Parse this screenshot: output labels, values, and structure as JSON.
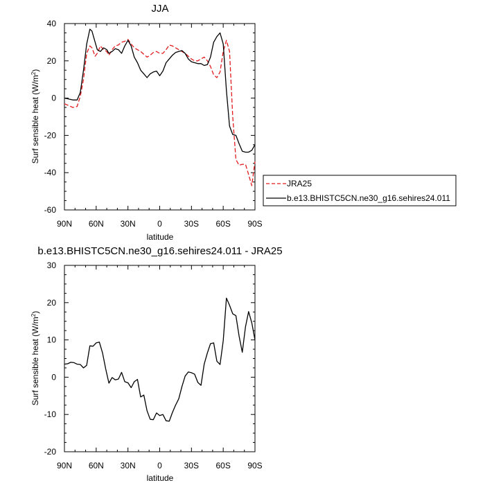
{
  "chart_data": [
    {
      "type": "line",
      "title": "JJA",
      "xlabel": "latitude",
      "ylabel": "Surf sensible heat (W/m",
      "ylabel_sup": "2",
      "ylabel_tail": ")",
      "xlim": [
        90,
        -90
      ],
      "ylim": [
        -60,
        40
      ],
      "x_ticks": [
        90,
        60,
        30,
        0,
        -30,
        -60,
        -90
      ],
      "x_tick_labels": [
        "90N",
        "60N",
        "30N",
        "0",
        "30S",
        "60S",
        "90S"
      ],
      "y_ticks": [
        -60,
        -40,
        -20,
        0,
        20,
        40
      ],
      "y_tick_labels": [
        "-60",
        "-40",
        "-20",
        "0",
        "20",
        "40"
      ],
      "legend_position": "right",
      "series": [
        {
          "name": "JRA25",
          "color": "#e31a1c",
          "dash": "dashed",
          "x": [
            90,
            86,
            82,
            78,
            75,
            72,
            69,
            66,
            64,
            61,
            59,
            56,
            53,
            50,
            48,
            45,
            42,
            39,
            36,
            33,
            30,
            27,
            24,
            21,
            18,
            15,
            12,
            9,
            6,
            3,
            0,
            -3,
            -6,
            -9,
            -12,
            -15,
            -18,
            -21,
            -24,
            -27,
            -30,
            -33,
            -36,
            -39,
            -42,
            -45,
            -48,
            -51,
            -54,
            -57,
            -60,
            -63,
            -66,
            -69,
            -72,
            -75,
            -78,
            -81,
            -84,
            -87,
            -90
          ],
          "values": [
            -3,
            -4,
            -5,
            -4.5,
            1,
            10,
            24,
            28,
            27,
            22.5,
            24,
            28,
            26,
            25,
            23,
            26,
            28,
            28.5,
            30,
            30.5,
            31.5,
            29,
            27,
            26,
            25,
            23.5,
            22,
            23,
            24.5,
            25,
            24,
            24,
            26,
            28.5,
            28,
            27,
            26,
            25,
            24,
            22.5,
            21,
            20,
            20,
            21,
            22,
            20,
            17,
            12.5,
            11,
            14,
            25,
            31,
            25,
            -10,
            -33,
            -36,
            -35.5,
            -35.5,
            -41,
            -47,
            -34
          ]
        },
        {
          "name": "b.e13.BHISTC5CN.ne30_g16.sehires24.011",
          "color": "#000000",
          "dash": "solid",
          "x": [
            90,
            86,
            82,
            78,
            75,
            72,
            69,
            66,
            64,
            61,
            59,
            56,
            53,
            50,
            48,
            45,
            42,
            39,
            36,
            33,
            30,
            27,
            24,
            21,
            18,
            15,
            12,
            9,
            6,
            3,
            0,
            -3,
            -6,
            -9,
            -12,
            -15,
            -18,
            -21,
            -24,
            -27,
            -30,
            -33,
            -36,
            -39,
            -42,
            -45,
            -48,
            -51,
            -54,
            -57,
            -60,
            -63,
            -66,
            -69,
            -72,
            -75,
            -78,
            -81,
            -84,
            -87,
            -90
          ],
          "values": [
            0,
            -0.5,
            -1,
            -1,
            3,
            15,
            29,
            37,
            36,
            30,
            26,
            25,
            27,
            26,
            24,
            25,
            26.5,
            26,
            24,
            28,
            31,
            28,
            22,
            19,
            15,
            13,
            11,
            13,
            14,
            14.5,
            12,
            14.5,
            19,
            21,
            23,
            24.5,
            25,
            25.5,
            24,
            21,
            19.5,
            19,
            18.5,
            18.5,
            17.5,
            18,
            22,
            30,
            33,
            35,
            29,
            4,
            -15,
            -19.5,
            -20,
            -24.5,
            -28.5,
            -29,
            -29,
            -28,
            -25
          ]
        }
      ]
    },
    {
      "type": "line",
      "title": "b.e13.BHISTC5CN.ne30_g16.sehires24.011 - JRA25",
      "xlabel": "latitude",
      "ylabel": "Surf sensible heat (W/m",
      "ylabel_sup": "2",
      "ylabel_tail": ")",
      "xlim": [
        90,
        -90
      ],
      "ylim": [
        -20,
        30
      ],
      "x_ticks": [
        90,
        60,
        30,
        0,
        -30,
        -60,
        -90
      ],
      "x_tick_labels": [
        "90N",
        "60N",
        "30N",
        "0",
        "30S",
        "60S",
        "90S"
      ],
      "y_ticks": [
        -20,
        -10,
        0,
        10,
        20,
        30
      ],
      "y_tick_labels": [
        "-20",
        "-10",
        "0",
        "10",
        "20",
        "30"
      ],
      "series": [
        {
          "color": "#000000",
          "dash": "solid",
          "x": [
            90,
            87,
            84,
            81,
            78,
            75,
            72,
            69,
            66,
            63,
            60,
            57,
            54,
            51,
            48,
            45,
            42,
            39,
            36,
            33,
            30,
            27,
            24,
            21,
            18,
            15,
            12,
            9,
            6,
            3,
            0,
            -3,
            -6,
            -9,
            -12,
            -15,
            -18,
            -21,
            -24,
            -27,
            -30,
            -33,
            -36,
            -39,
            -42,
            -45,
            -48,
            -51,
            -54,
            -57,
            -60,
            -63,
            -66,
            -69,
            -72,
            -75,
            -78,
            -81,
            -84,
            -87,
            -90
          ],
          "values": [
            3.5,
            3.6,
            4,
            3.9,
            3.5,
            3.4,
            2.5,
            3.2,
            8.4,
            8.3,
            9.2,
            9.4,
            6.5,
            2.2,
            -1.6,
            -0.1,
            -0.7,
            -0.5,
            1.3,
            -1.2,
            -1.5,
            -2.8,
            -1.2,
            -0.6,
            -5.3,
            -4.8,
            -9,
            -11.3,
            -11.4,
            -9.6,
            -10.3,
            -10,
            -11.7,
            -11.8,
            -9.5,
            -7.5,
            -5.8,
            -2.5,
            0.3,
            1.4,
            1.2,
            0.8,
            -1.4,
            -2.2,
            3.5,
            6.5,
            9,
            9.2,
            4.3,
            3.4,
            9.8,
            21.2,
            19.3,
            17,
            16.5,
            11,
            6.7,
            13.5,
            17.6,
            14.6,
            10
          ]
        }
      ]
    }
  ]
}
